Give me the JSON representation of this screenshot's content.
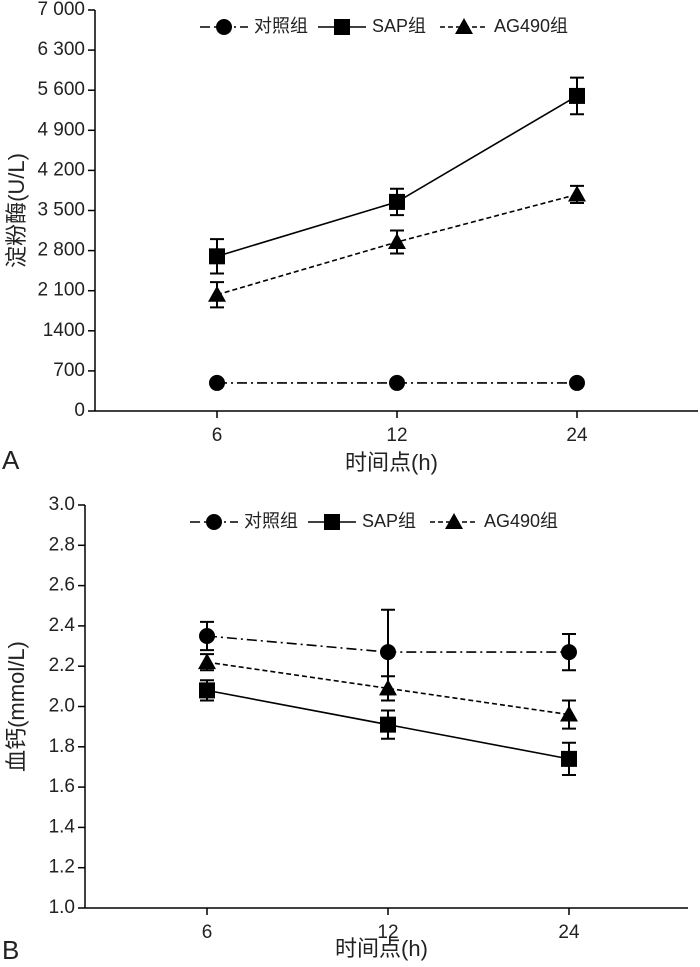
{
  "chart_data": [
    {
      "type": "line",
      "panel_label": "A",
      "y_label": "淀粉酶(U/L)",
      "x_label": "时间点(h)",
      "categories": [
        "6",
        "12",
        "24"
      ],
      "ylim": [
        0,
        7000
      ],
      "yticks": [
        0,
        700,
        1400,
        {
          "value": 2100,
          "label": "2 100"
        },
        {
          "value": 2800,
          "label": "2 800"
        },
        {
          "value": 3500,
          "label": "3 500"
        },
        {
          "value": 4200,
          "label": "4 200"
        },
        {
          "value": 4900,
          "label": "4 900"
        },
        {
          "value": 5600,
          "label": "5 600"
        },
        {
          "value": 6300,
          "label": "6 300"
        },
        {
          "value": 7000,
          "label": "7 000"
        }
      ],
      "legend": "top",
      "series": [
        {
          "name": "对照组",
          "color": "#000000",
          "line_style": "dashdot",
          "marker": "circle",
          "values": [
            490,
            490,
            490
          ]
        },
        {
          "name": "SAP组",
          "color": "#000000",
          "line_style": "solid",
          "marker": "square",
          "values": [
            2700,
            3650,
            5500
          ],
          "errors": [
            300,
            230,
            320
          ]
        },
        {
          "name": "AG490组",
          "color": "#000000",
          "line_style": "dashed",
          "marker": "triangle",
          "values": [
            2030,
            2950,
            3780
          ],
          "errors": [
            220,
            200,
            150
          ]
        }
      ]
    },
    {
      "type": "line",
      "panel_label": "B",
      "y_label": "血钙(mmol/L)",
      "x_label": "时间点(h)",
      "categories": [
        "6",
        "12",
        "24"
      ],
      "ylim": [
        1.0,
        3.0
      ],
      "yticks": [
        {
          "value": 1.0,
          "label": "1.0"
        },
        1.2,
        1.4,
        1.6,
        1.8,
        {
          "value": 2.0,
          "label": "2.0"
        },
        2.2,
        2.4,
        2.6,
        2.8,
        {
          "value": 3.0,
          "label": "3.0"
        }
      ],
      "legend": "top",
      "series": [
        {
          "name": "对照组",
          "color": "#000000",
          "line_style": "dashdot",
          "marker": "circle",
          "values": [
            2.35,
            2.27,
            2.27
          ],
          "errors": [
            0.07,
            0.21,
            0.09
          ]
        },
        {
          "name": "SAP组",
          "color": "#000000",
          "line_style": "solid",
          "marker": "square",
          "values": [
            2.08,
            1.91,
            1.74
          ],
          "errors": [
            0.05,
            0.07,
            0.08
          ]
        },
        {
          "name": "AG490组",
          "color": "#000000",
          "line_style": "dashed",
          "marker": "triangle",
          "values": [
            2.22,
            2.09,
            1.96
          ],
          "errors": [
            0.04,
            0.06,
            0.07
          ]
        }
      ]
    }
  ]
}
